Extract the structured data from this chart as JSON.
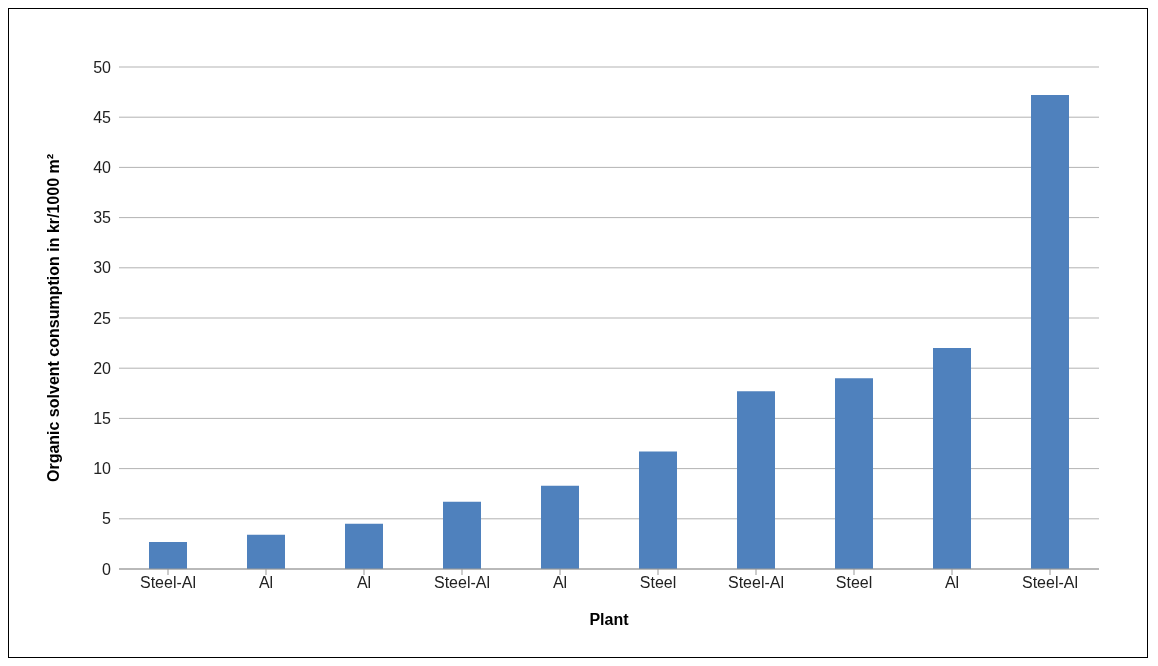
{
  "chart_data": {
    "type": "bar",
    "xlabel": "Plant",
    "ylabel": "Organic solvent consumption in kr/1000 m²",
    "categories": [
      "Steel-Al",
      "Al",
      "Al",
      "Steel-Al",
      "Al",
      "Steel",
      "Steel-Al",
      "Steel",
      "Al",
      "Steel-Al"
    ],
    "values": [
      2.7,
      3.4,
      4.5,
      6.7,
      8.3,
      11.7,
      17.7,
      19.0,
      22.0,
      47.2
    ],
    "color": "#4f81bd",
    "ylim": [
      0,
      50
    ],
    "yticks": [
      0,
      5,
      10,
      15,
      20,
      25,
      30,
      35,
      40,
      45,
      50
    ],
    "grid": "y"
  }
}
